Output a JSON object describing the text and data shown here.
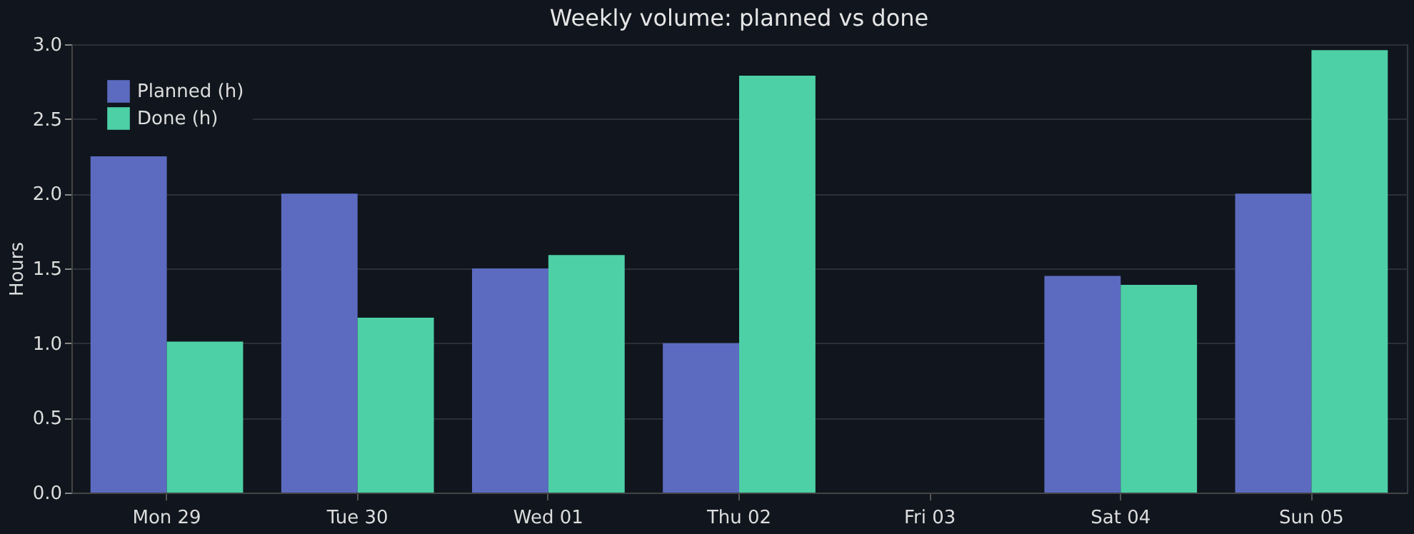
{
  "chart_data": {
    "type": "bar",
    "title": "Weekly volume: planned vs done",
    "ylabel": "Hours",
    "categories": [
      "Mon 29",
      "Tue 30",
      "Wed 01",
      "Thu 02",
      "Fri 03",
      "Sat 04",
      "Sun 05"
    ],
    "series": [
      {
        "name": "Planned (h)",
        "color": "#5c6bc0",
        "values": [
          2.25,
          2.0,
          1.5,
          1.0,
          0,
          1.45,
          2.0
        ]
      },
      {
        "name": "Done (h)",
        "color": "#4dd0a6",
        "values": [
          1.01,
          1.17,
          1.59,
          2.79,
          0,
          1.39,
          2.96
        ]
      }
    ],
    "ylim": [
      0,
      3.0
    ],
    "yticks": [
      {
        "value": 0,
        "label": "0.0"
      },
      0.5,
      {
        "value": 1,
        "label": "1.0"
      },
      1.5,
      {
        "value": 2,
        "label": "2.0"
      },
      2.5,
      {
        "value": 3,
        "label": "3.0"
      }
    ],
    "grid": "y",
    "legend": "top left"
  }
}
